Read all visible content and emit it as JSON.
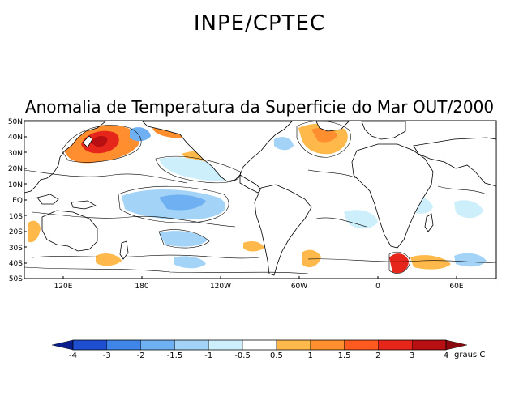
{
  "header": {
    "organization": "INPE/CPTEC"
  },
  "map": {
    "title": "Anomalia de Temperatura da Superficie do Mar OUT/2000",
    "lat_labels": [
      "50N",
      "40N",
      "30N",
      "20N",
      "10N",
      "EQ",
      "10S",
      "20S",
      "30S",
      "40S",
      "50S"
    ],
    "lon_labels": [
      "120E",
      "180",
      "120W",
      "60W",
      "0",
      "60E"
    ]
  },
  "colorbar": {
    "labels": [
      "-4",
      "-3",
      "-2",
      "-1.5",
      "-1",
      "-0.5",
      "0.5",
      "1",
      "1.5",
      "2",
      "3",
      "4"
    ],
    "unit": "graus C",
    "colors": [
      "#0a1d8c",
      "#1f4fd1",
      "#3f86e8",
      "#6fb0f2",
      "#a3d3f7",
      "#cdeefb",
      "#ffffff",
      "#ffb84a",
      "#ff8f2e",
      "#ff5a1f",
      "#e6261a",
      "#b80f12",
      "#8a0a10"
    ]
  },
  "colors": {
    "land": "#ffffff",
    "warm_1": "#ffb84a",
    "warm_2": "#ff8f2e",
    "warm_3": "#ff5a1f",
    "warm_4": "#e6261a",
    "warm_5": "#b80f12",
    "cool_1": "#cdeefb",
    "cool_2": "#a3d3f7",
    "cool_3": "#6fb0f2"
  }
}
